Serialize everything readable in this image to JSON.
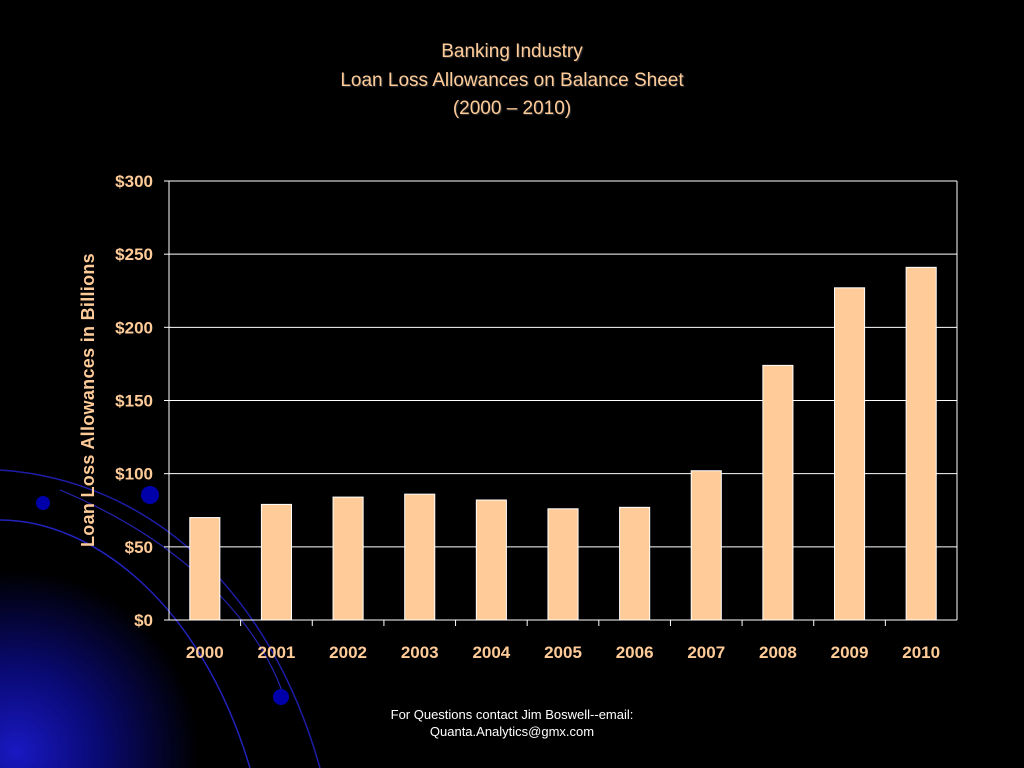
{
  "title": {
    "line1": "Banking Industry",
    "line2": "Loan Loss Allowances on Balance Sheet",
    "line3": "(2000 – 2010)"
  },
  "footer": {
    "line1": "For Questions contact Jim Boswell--email:",
    "line2": "Quanta.Analytics@gmx.com"
  },
  "colors": {
    "background": "#000000",
    "text": "#ffcc99",
    "bar_fill": "#ffcc99",
    "bar_stroke": "#ffffff",
    "gridline": "#ffffff",
    "decor_blue": "#0a0a8a"
  },
  "chart_data": {
    "type": "bar",
    "title": "Banking Industry Loan Loss Allowances on Balance Sheet (2000 – 2010)",
    "xlabel": "",
    "ylabel": "Loan Loss Allowances in Billions",
    "categories": [
      "2000",
      "2001",
      "2002",
      "2003",
      "2004",
      "2005",
      "2006",
      "2007",
      "2008",
      "2009",
      "2010"
    ],
    "values": [
      70,
      79,
      84,
      86,
      82,
      76,
      77,
      102,
      174,
      227,
      241
    ],
    "ylim": [
      0,
      300
    ],
    "yticks": [
      0,
      50,
      100,
      150,
      200,
      250,
      300
    ],
    "ytick_labels": [
      "$0",
      "$50",
      "$100",
      "$150",
      "$200",
      "$250",
      "$300"
    ],
    "grid": true,
    "legend": "none"
  }
}
